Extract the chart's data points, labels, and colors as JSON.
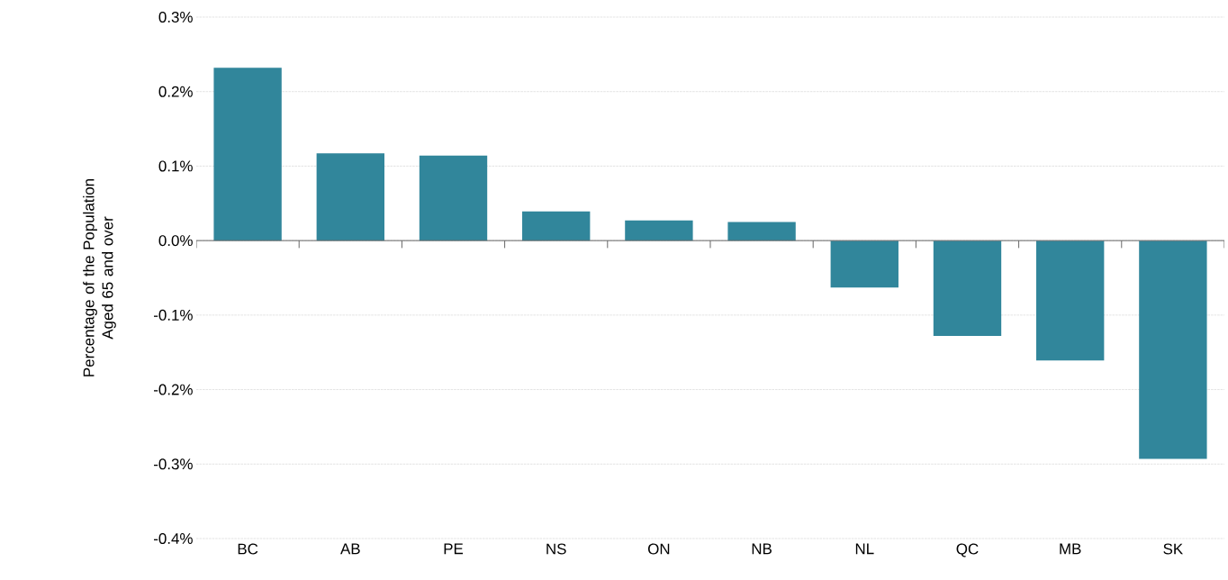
{
  "chart_data": {
    "type": "bar",
    "ylabel": "Percentage of the Population Aged 65 and over",
    "categories": [
      "BC",
      "AB",
      "PE",
      "NS",
      "ON",
      "NB",
      "NL",
      "QC",
      "MB",
      "SK"
    ],
    "values": [
      0.232,
      0.117,
      0.114,
      0.039,
      0.027,
      0.025,
      -0.063,
      -0.128,
      -0.161,
      -0.293
    ],
    "color": "#31869b",
    "ylim": [
      -0.4,
      0.3
    ],
    "yticks": [
      {
        "value": -0.4,
        "label": "-0.4%"
      },
      {
        "value": -0.3,
        "label": "-0.3%"
      },
      {
        "value": -0.2,
        "label": "-0.2%"
      },
      {
        "value": -0.1,
        "label": "-0.1%"
      },
      {
        "value": 0.0,
        "label": "0.0%"
      },
      {
        "value": 0.1,
        "label": "0.1%"
      },
      {
        "value": 0.2,
        "label": "0.2%"
      },
      {
        "value": 0.3,
        "label": "0.3%"
      }
    ],
    "grid": "y"
  }
}
